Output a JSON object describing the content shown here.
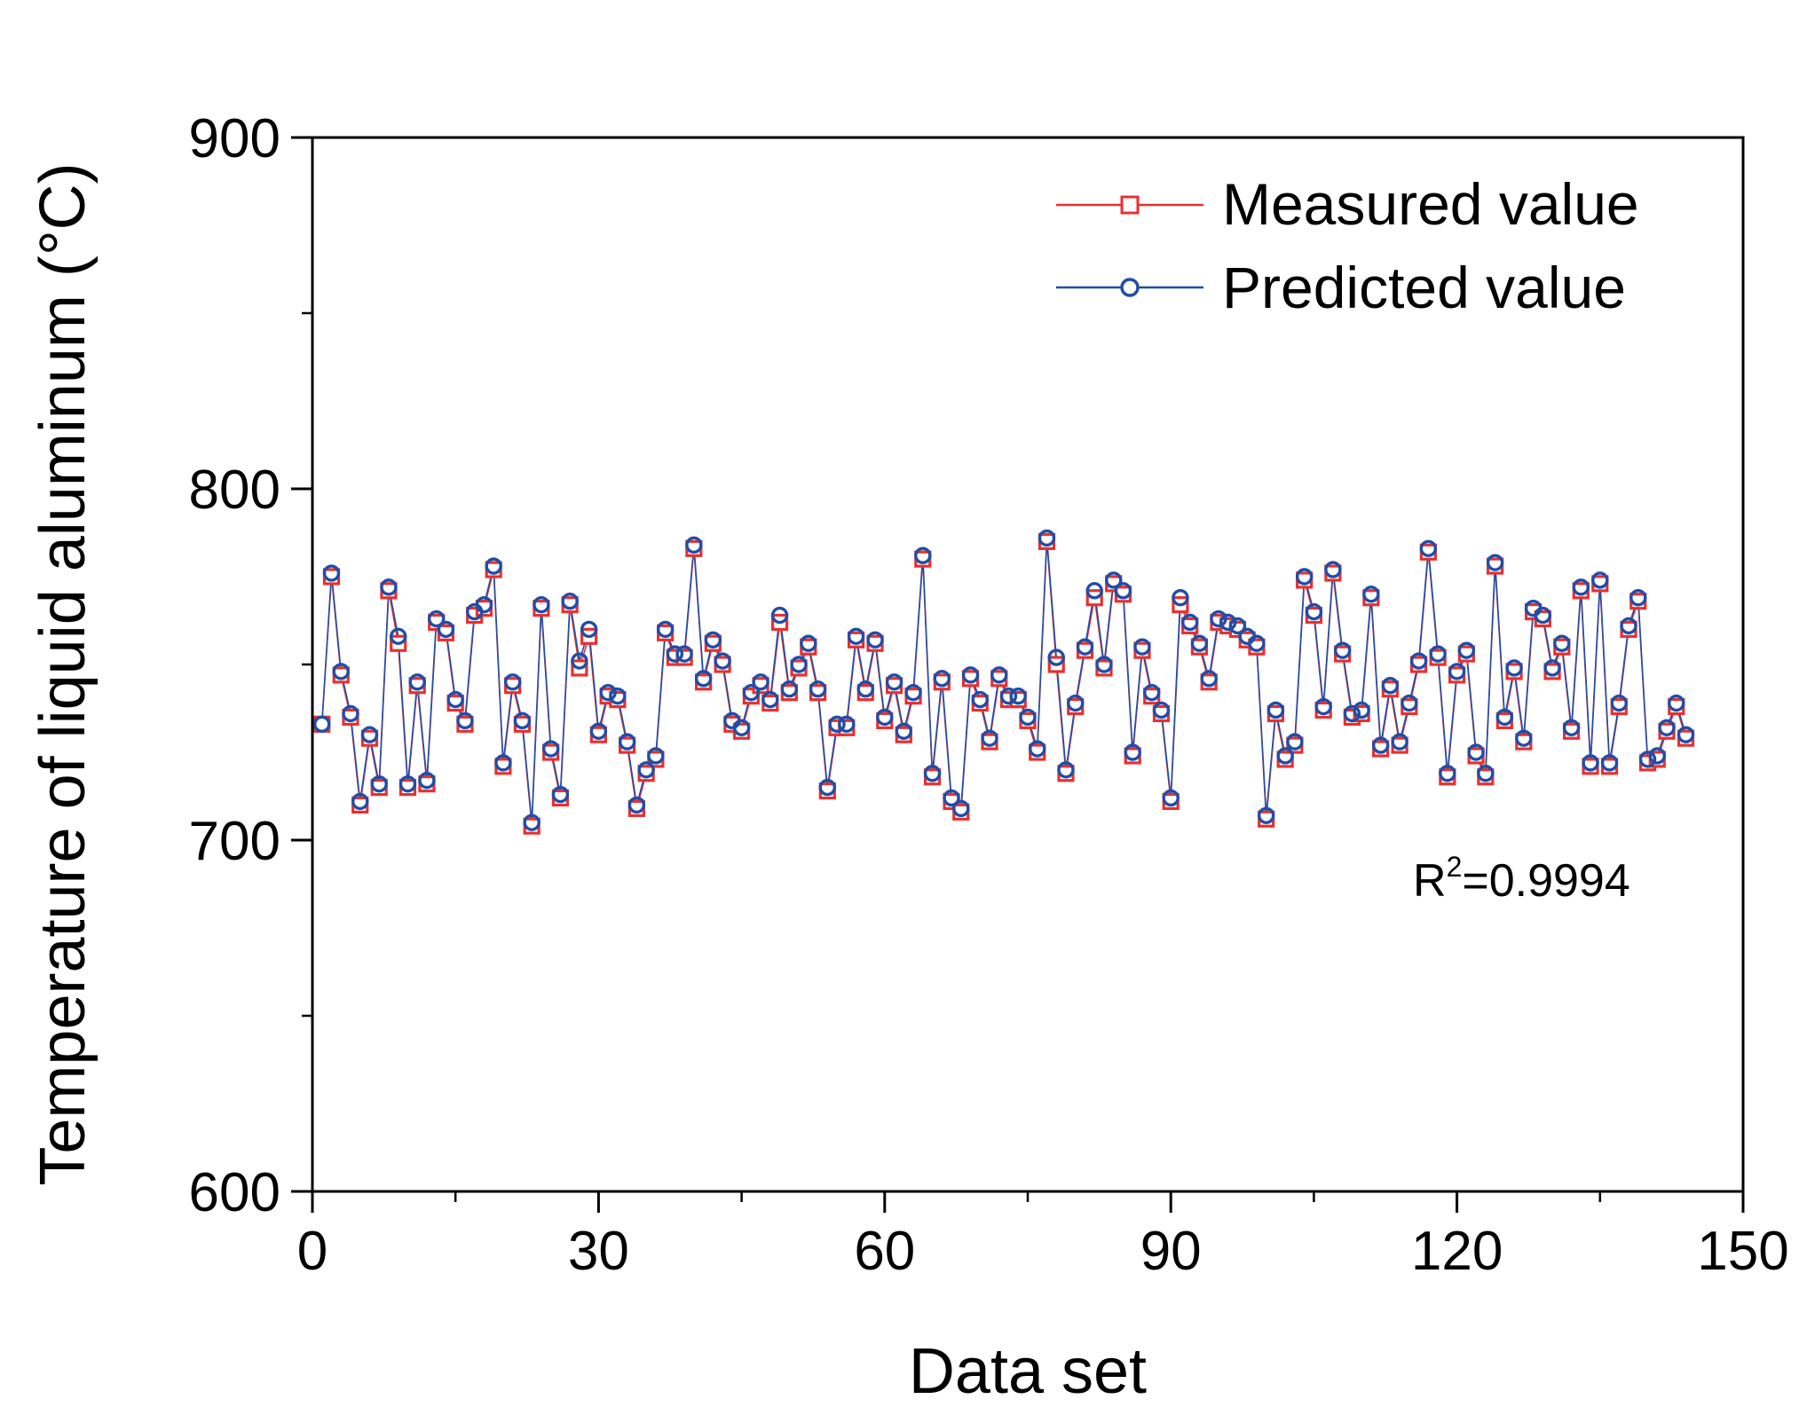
{
  "chart_data": {
    "type": "line",
    "title": "",
    "xlabel": "Data set",
    "ylabel": "Temperature of liquid aluminum (°C)",
    "xlim": [
      0,
      150
    ],
    "ylim": [
      600,
      900
    ],
    "xticks": [
      0,
      30,
      60,
      90,
      120,
      150
    ],
    "yticks": [
      600,
      700,
      800,
      900
    ],
    "x_minor_step": 15,
    "y_minor_step": 50,
    "grid": false,
    "legend_position": "top-right",
    "annotation": {
      "base": "R",
      "sup": "2",
      "rest": "=0.9994"
    },
    "series": [
      {
        "name": "Measured value",
        "color": "#e8302f",
        "marker": "square",
        "values": [
          733,
          775,
          747,
          735,
          710,
          729,
          715,
          771,
          756,
          715,
          744,
          716,
          762,
          759,
          739,
          733,
          764,
          766,
          777,
          721,
          744,
          733,
          704,
          766,
          725,
          712,
          767,
          749,
          758,
          730,
          741,
          740,
          727,
          709,
          719,
          723,
          759,
          752,
          752,
          783,
          745,
          756,
          750,
          733,
          731,
          741,
          744,
          739,
          762,
          742,
          749,
          755,
          742,
          714,
          732,
          732,
          757,
          742,
          756,
          734,
          744,
          730,
          741,
          780,
          718,
          745,
          711,
          708,
          746,
          739,
          728,
          746,
          740,
          740,
          734,
          725,
          785,
          750,
          719,
          738,
          754,
          769,
          749,
          773,
          770,
          724,
          754,
          741,
          736,
          711,
          767,
          761,
          755,
          745,
          762,
          761,
          760,
          757,
          755,
          706,
          736,
          723,
          727,
          774,
          764,
          737,
          776,
          753,
          735,
          736,
          769,
          726,
          743,
          727,
          738,
          750,
          782,
          752,
          718,
          747,
          753,
          724,
          718,
          778,
          734,
          748,
          728,
          765,
          763,
          748,
          755,
          731,
          771,
          721,
          773,
          721,
          738,
          760,
          768,
          722,
          723,
          731,
          738,
          729
        ]
      },
      {
        "name": "Predicted value",
        "color": "#1f4ea8",
        "marker": "circle",
        "values": [
          733,
          776,
          748,
          736,
          711,
          730,
          716,
          772,
          758,
          716,
          745,
          717,
          763,
          760,
          740,
          734,
          765,
          767,
          778,
          722,
          745,
          734,
          705,
          767,
          726,
          713,
          768,
          751,
          760,
          731,
          742,
          741,
          728,
          710,
          720,
          724,
          760,
          753,
          753,
          784,
          746,
          757,
          751,
          734,
          732,
          742,
          745,
          740,
          764,
          743,
          750,
          756,
          743,
          715,
          733,
          733,
          758,
          743,
          757,
          735,
          745,
          731,
          742,
          781,
          719,
          746,
          712,
          709,
          747,
          740,
          729,
          747,
          741,
          741,
          735,
          726,
          786,
          752,
          720,
          739,
          755,
          771,
          750,
          774,
          771,
          725,
          755,
          742,
          737,
          712,
          769,
          762,
          756,
          746,
          763,
          762,
          761,
          758,
          756,
          707,
          737,
          724,
          728,
          775,
          765,
          738,
          777,
          754,
          736,
          737,
          770,
          727,
          744,
          728,
          739,
          751,
          783,
          753,
          719,
          748,
          754,
          725,
          719,
          779,
          735,
          749,
          729,
          766,
          764,
          749,
          756,
          732,
          772,
          722,
          774,
          722,
          739,
          761,
          769,
          723,
          724,
          732,
          739,
          730
        ]
      }
    ]
  }
}
